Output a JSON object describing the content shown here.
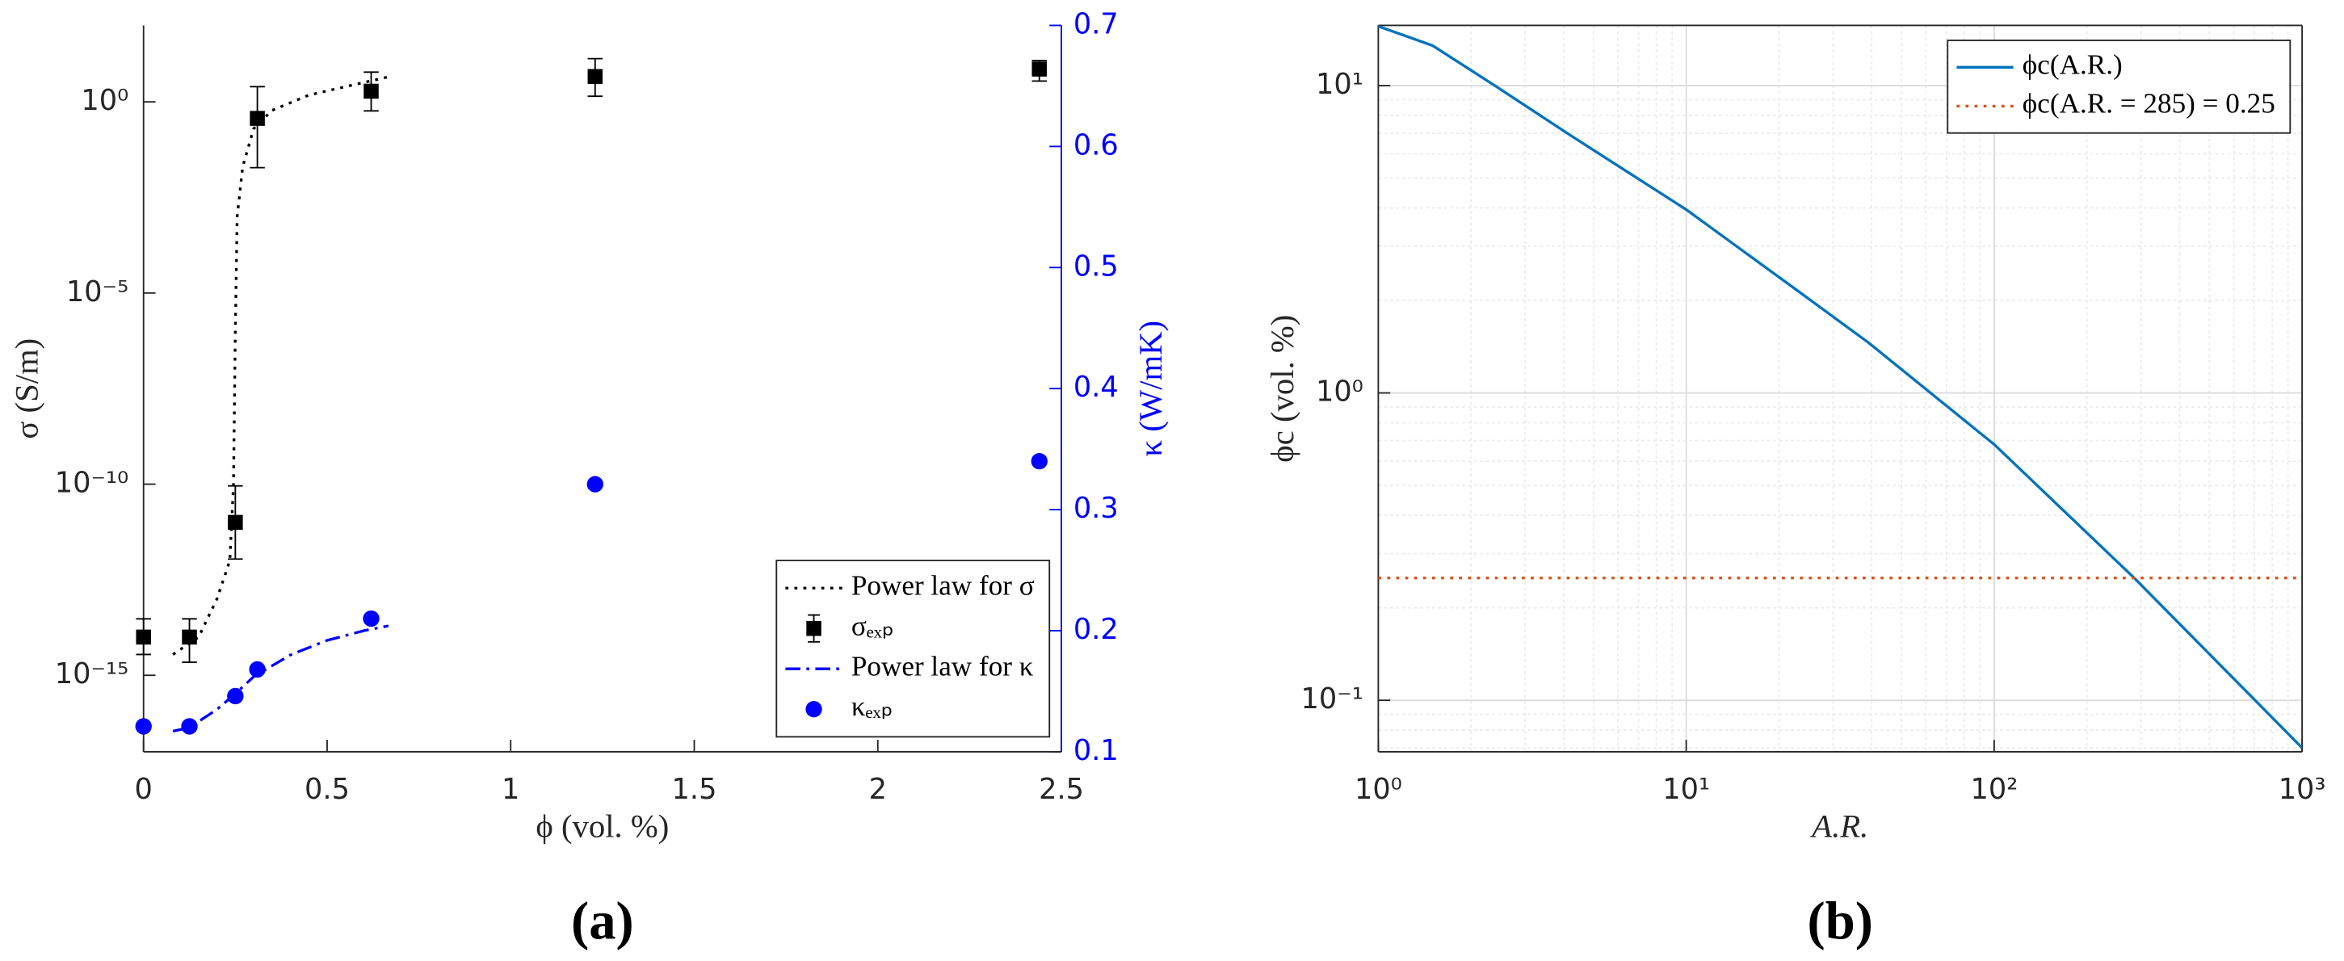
{
  "chart_data": [
    {
      "type": "line",
      "panel_label": "(a)",
      "xlabel": "ϕ (vol. %)",
      "ylabel": "σ (S/m)",
      "y2label": "κ (W/mK)",
      "y2color": "#0000ff",
      "xlim": [
        0,
        2.5
      ],
      "xticks": [
        0,
        0.5,
        1,
        1.5,
        2,
        2.5
      ],
      "ylog": true,
      "ylim": [
        1e-17,
        100
      ],
      "yticks": [
        {
          "value": 1e-15,
          "label": "10⁻¹⁵"
        },
        {
          "value": 1e-10,
          "label": "10⁻¹⁰"
        },
        {
          "value": 1e-05,
          "label": "10⁻⁵"
        },
        {
          "value": 1,
          "label": "10⁰"
        }
      ],
      "y2lim": [
        0.1,
        0.7
      ],
      "y2ticks": [
        0.1,
        0.2,
        0.3,
        0.4,
        0.5,
        0.6,
        0.7
      ],
      "legend": "lower right",
      "series": [
        {
          "name": "Power law for σ",
          "kind": "line",
          "dash": "dotted",
          "color": "#000000",
          "x": [
            0.08,
            0.15,
            0.2,
            0.235,
            0.245,
            0.25,
            0.255,
            0.27,
            0.3,
            0.35,
            0.45,
            0.55,
            0.667
          ],
          "values": [
            3.5e-15,
            1e-14,
            1e-13,
            1e-12,
            1e-10,
            1e-06,
            0.001,
            0.02,
            0.2,
            0.6,
            1.5,
            2.5,
            4.5
          ]
        },
        {
          "name": "σₑₓₚ",
          "kind": "errorbar",
          "color": "#000000",
          "x": [
            0,
            0.125,
            0.25,
            0.31,
            0.62,
            1.23,
            2.44
          ],
          "values": [
            1e-14,
            1e-14,
            1e-11,
            0.37,
            1.9,
            4.6,
            7.2
          ],
          "lower": [
            3.5e-15,
            2.2e-15,
            1.1e-12,
            0.019,
            0.58,
            1.4,
            3.5
          ],
          "upper": [
            3e-14,
            3e-14,
            9e-11,
            2.5,
            6,
            13.5,
            12
          ]
        },
        {
          "name": "Power law for κ",
          "kind": "line",
          "dash": "dashdot",
          "color": "#0000ff",
          "axis": "y2",
          "x": [
            0.08,
            0.125,
            0.2,
            0.25,
            0.3,
            0.4,
            0.5,
            0.6,
            0.667
          ],
          "values": [
            0.117,
            0.12,
            0.135,
            0.148,
            0.162,
            0.18,
            0.192,
            0.2,
            0.204
          ]
        },
        {
          "name": "κₑₓₚ",
          "kind": "scatter",
          "color": "#0000ff",
          "axis": "y2",
          "x": [
            0,
            0.125,
            0.25,
            0.31,
            0.62,
            1.23,
            2.44
          ],
          "values": [
            0.121,
            0.121,
            0.146,
            0.168,
            0.21,
            0.321,
            0.34
          ]
        }
      ]
    },
    {
      "type": "line",
      "panel_label": "(b)",
      "xlabel": "A.R.",
      "ylabel": "ϕc (vol. %)",
      "xlog": true,
      "xlim": [
        1,
        1000
      ],
      "xticks": [
        {
          "value": 1,
          "label": "10⁰"
        },
        {
          "value": 10,
          "label": "10¹"
        },
        {
          "value": 100,
          "label": "10²"
        },
        {
          "value": 1000,
          "label": "10³"
        }
      ],
      "ylog": true,
      "ylim": [
        0.068,
        15.7
      ],
      "yticks": [
        {
          "value": 0.1,
          "label": "10⁻¹"
        },
        {
          "value": 1,
          "label": "10⁰"
        },
        {
          "value": 10,
          "label": "10¹"
        }
      ],
      "grid": true,
      "minor_grid": true,
      "box": true,
      "legend": "upper right",
      "series": [
        {
          "name": "ϕc(A.R.)",
          "kind": "line",
          "dash": "solid",
          "color": "#0072bd",
          "x": [
            1,
            1.5,
            2.39,
            4.2,
            10,
            22.3,
            39,
            100,
            285,
            1000
          ],
          "values": [
            15.6,
            13.5,
            10,
            6.9,
            3.95,
            2.2,
            1.46,
            0.68,
            0.25,
            0.07
          ]
        },
        {
          "name": "ϕc(A.R. = 285) = 0.25",
          "kind": "line",
          "dash": "dotted",
          "color": "#d95319",
          "x": [
            1,
            1000
          ],
          "values": [
            0.25,
            0.25
          ]
        }
      ]
    }
  ]
}
